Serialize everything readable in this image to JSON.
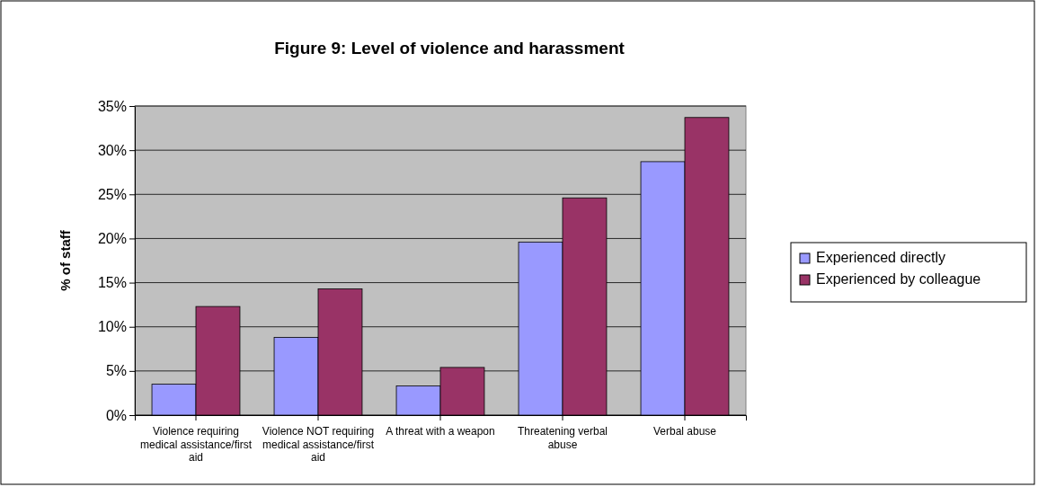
{
  "chart_data": {
    "type": "bar",
    "title": "Figure 9: Level of violence and harassment",
    "ylabel": "% of staff",
    "categories": [
      "Violence requiring medical assistance/first aid",
      "Violence NOT requiring medical assistance/first aid",
      "A threat with a weapon",
      "Threatening verbal abuse",
      "Verbal abuse"
    ],
    "series": [
      {
        "name": "Experienced directly",
        "color": "#9999ff",
        "values": [
          3.5,
          8.8,
          3.3,
          19.6,
          28.7
        ]
      },
      {
        "name": "Experienced by colleague",
        "color": "#993366",
        "values": [
          12.3,
          14.3,
          5.4,
          24.6,
          33.7
        ]
      }
    ],
    "ylim": [
      0,
      35
    ],
    "yticks": [
      {
        "value": 0,
        "label": "0%"
      },
      {
        "value": 5,
        "label": "5%"
      },
      {
        "value": 10,
        "label": "10%"
      },
      {
        "value": 15,
        "label": "15%"
      },
      {
        "value": 20,
        "label": "20%"
      },
      {
        "value": 25,
        "label": "25%"
      },
      {
        "value": 30,
        "label": "30%"
      },
      {
        "value": 35,
        "label": "35%"
      }
    ],
    "grid": "y",
    "legend": "right"
  }
}
